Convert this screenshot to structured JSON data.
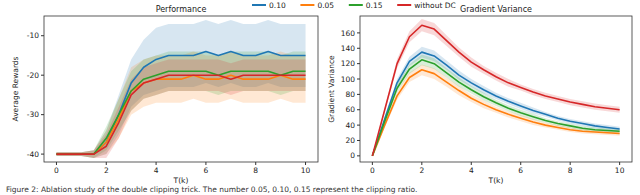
{
  "chart_data": [
    {
      "type": "line",
      "title": "Performance",
      "x_label": "T(k)",
      "y_label": "Average Rewards",
      "legend": "top",
      "grid": false,
      "x": [
        0,
        0.5,
        1,
        1.5,
        2,
        2.5,
        3,
        3.5,
        4,
        4.5,
        5,
        5.5,
        6,
        6.5,
        7,
        7.5,
        8,
        8.5,
        9,
        9.5,
        10
      ],
      "xlim": [
        -0.5,
        10.5
      ],
      "xticks": [
        0,
        2,
        4,
        6,
        8,
        10
      ],
      "ylim": [
        -42,
        -5
      ],
      "yticks": [
        -40,
        -30,
        -20,
        -10
      ],
      "series": [
        {
          "name": "0.10",
          "color": "#1f77b4",
          "values": [
            -40,
            -40,
            -40,
            -40,
            -37,
            -30,
            -22,
            -18,
            -16,
            -15,
            -15,
            -15,
            -14,
            -15,
            -14,
            -15,
            -15,
            -14,
            -15,
            -15,
            -15
          ],
          "std": [
            0.5,
            0.5,
            0.5,
            1,
            3,
            5,
            6,
            7,
            8,
            8,
            8,
            8,
            8,
            8,
            8,
            8,
            8,
            8,
            8,
            8,
            8
          ]
        },
        {
          "name": "0.05",
          "color": "#ff7f0e",
          "values": [
            -40,
            -40,
            -40,
            -40,
            -37,
            -31,
            -24,
            -22,
            -21,
            -21,
            -21,
            -20,
            -21,
            -21,
            -20,
            -21,
            -21,
            -21,
            -20,
            -21,
            -21
          ],
          "std": [
            0.5,
            0.5,
            0.5,
            1,
            3,
            5,
            6,
            6,
            6,
            6,
            6,
            6,
            6,
            6,
            6,
            6,
            6,
            6,
            6,
            6,
            6
          ]
        },
        {
          "name": "0.15",
          "color": "#2ca02c",
          "values": [
            -40,
            -40,
            -40,
            -40,
            -36,
            -30,
            -24,
            -21,
            -20,
            -19,
            -19,
            -19,
            -19,
            -20,
            -19,
            -19,
            -19,
            -19,
            -20,
            -19,
            -19
          ],
          "std": [
            0.5,
            0.5,
            0.5,
            1,
            3,
            4,
            5,
            5,
            5,
            5,
            5,
            5,
            5,
            5,
            5,
            5,
            5,
            5,
            5,
            5,
            5
          ]
        },
        {
          "name": "without DC",
          "color": "#d62728",
          "values": [
            -40,
            -40,
            -40,
            -40,
            -38,
            -32,
            -25,
            -22,
            -21,
            -20,
            -20,
            -20,
            -20,
            -20,
            -21,
            -20,
            -20,
            -20,
            -20,
            -20,
            -20
          ],
          "std": [
            0.5,
            0.5,
            0.5,
            1,
            3,
            4,
            4,
            4,
            4,
            4,
            4,
            4,
            4,
            4,
            4,
            4,
            4,
            4,
            4,
            4,
            4
          ]
        }
      ]
    },
    {
      "type": "line",
      "title": "Gradient Variance",
      "x_label": "T(k)",
      "y_label": "Gradient Variance",
      "grid": false,
      "x": [
        0,
        0.5,
        1,
        1.5,
        2,
        2.5,
        3,
        3.5,
        4,
        4.5,
        5,
        5.5,
        6,
        6.5,
        7,
        7.5,
        8,
        8.5,
        9,
        9.5,
        10
      ],
      "xlim": [
        -0.5,
        10.5
      ],
      "xticks": [
        0,
        2,
        4,
        6,
        8,
        10
      ],
      "ylim": [
        -8,
        182
      ],
      "yticks": [
        0,
        20,
        40,
        60,
        80,
        100,
        120,
        140,
        160
      ],
      "series": [
        {
          "color": "#1f77b4",
          "values": [
            0,
            48,
            95,
            123,
            135,
            130,
            118,
            105,
            95,
            86,
            78,
            71,
            65,
            59,
            54,
            49,
            45,
            42,
            39,
            37,
            35
          ],
          "std": [
            0,
            3,
            5,
            6,
            7,
            7,
            6,
            6,
            5,
            5,
            4,
            4,
            4,
            4,
            3,
            3,
            3,
            3,
            3,
            3,
            3
          ]
        },
        {
          "color": "#ff7f0e",
          "values": [
            0,
            40,
            78,
            102,
            112,
            107,
            96,
            85,
            75,
            67,
            60,
            54,
            49,
            44,
            40,
            37,
            34,
            32,
            31,
            30,
            29
          ],
          "std": [
            0,
            3,
            5,
            6,
            7,
            7,
            6,
            6,
            5,
            5,
            4,
            4,
            4,
            4,
            3,
            3,
            3,
            3,
            3,
            3,
            3
          ]
        },
        {
          "color": "#2ca02c",
          "values": [
            0,
            45,
            88,
            113,
            125,
            120,
            108,
            96,
            86,
            77,
            69,
            62,
            56,
            51,
            46,
            42,
            39,
            36,
            34,
            33,
            32
          ],
          "std": [
            0,
            3,
            5,
            6,
            7,
            7,
            6,
            6,
            5,
            5,
            4,
            4,
            4,
            4,
            3,
            3,
            3,
            3,
            3,
            3,
            3
          ]
        },
        {
          "color": "#d62728",
          "values": [
            0,
            60,
            120,
            155,
            170,
            165,
            150,
            135,
            122,
            112,
            103,
            95,
            89,
            83,
            78,
            74,
            70,
            67,
            64,
            62,
            60
          ],
          "std": [
            0,
            3,
            6,
            7,
            8,
            8,
            7,
            6,
            6,
            5,
            5,
            5,
            4,
            4,
            4,
            4,
            4,
            4,
            4,
            4,
            4
          ]
        }
      ]
    }
  ],
  "caption": "Figure 2: Ablation study of the double clipping trick. The number 0.05, 0.10, 0.15 represent the clipping ratio."
}
